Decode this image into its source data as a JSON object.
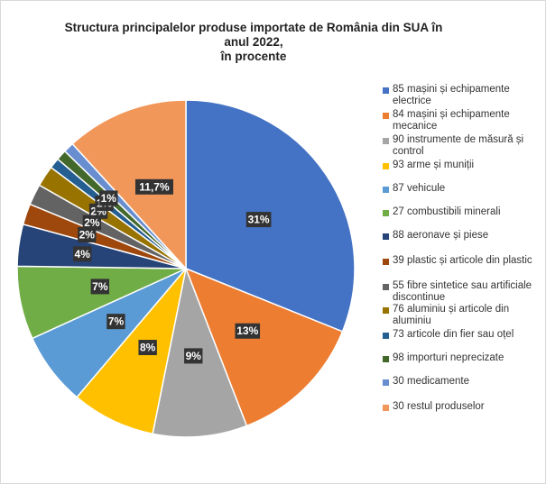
{
  "chart_data": {
    "type": "pie",
    "title": "Structura principalelor produse importate de România din SUA în anul 2022,\nîn procente",
    "slices": [
      {
        "name": "85 mașini și echipamente electrice",
        "value": 31,
        "label": "31%",
        "color": "#4472C4"
      },
      {
        "name": "84 mașini și echipamente mecanice",
        "value": 13,
        "label": "13%",
        "color": "#ED7D31"
      },
      {
        "name": "90 instrumente de măsură și control",
        "value": 9,
        "label": "9%",
        "color": "#A5A5A5"
      },
      {
        "name": "93 arme și muniții",
        "value": 8,
        "label": "8%",
        "color": "#FFC000"
      },
      {
        "name": "87 vehicule",
        "value": 7,
        "label": "7%",
        "color": "#5B9BD5"
      },
      {
        "name": "27 combustibili minerali",
        "value": 7,
        "label": "7%",
        "color": "#70AD47"
      },
      {
        "name": "88 aeronave și piese",
        "value": 4,
        "label": "4%",
        "color": "#264478"
      },
      {
        "name": "39 plastic și articole din plastic",
        "value": 2,
        "label": "2%",
        "color": "#9E480E"
      },
      {
        "name": "55 fibre sintetice sau artificiale discontinue",
        "value": 2,
        "label": "2%",
        "color": "#636363"
      },
      {
        "name": "76 aluminiu și articole din aluminiu",
        "value": 2,
        "label": "2%",
        "color": "#997300"
      },
      {
        "name": "73 articole din fier sau oțel",
        "value": 1,
        "label": "1%",
        "color": "#255E91"
      },
      {
        "name": "98 importuri neprecizate",
        "value": 1,
        "label": "1%",
        "color": "#43682B"
      },
      {
        "name": "30 medicamente",
        "value": 1,
        "label": "",
        "color": "#698ED0"
      },
      {
        "name": "30 restul produselor",
        "value": 11.7,
        "label": "11,7%",
        "color": "#F1975A"
      }
    ],
    "legend_position": "right"
  }
}
